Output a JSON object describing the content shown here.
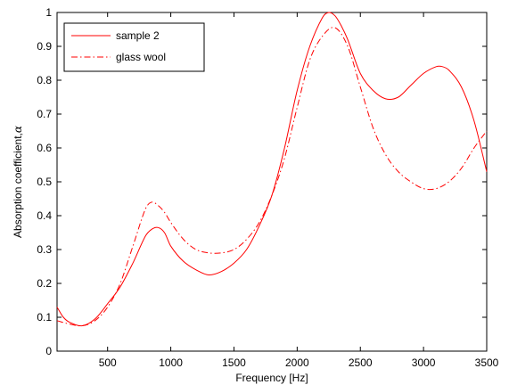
{
  "chart_data": {
    "type": "line",
    "xlabel": "Frequency [Hz]",
    "ylabel": "Absorption coefficient,",
    "ylabel_symbol": "α",
    "xlim": [
      100,
      3500
    ],
    "ylim": [
      0,
      1
    ],
    "xticks": [
      500,
      1000,
      1500,
      2000,
      2500,
      3000,
      3500
    ],
    "yticks": [
      0,
      0.1,
      0.2,
      0.3,
      0.4,
      0.5,
      0.6,
      0.7,
      0.8,
      0.9,
      1
    ],
    "grid": false,
    "legend_position": "top-left",
    "series": [
      {
        "name": "sample 2",
        "color": "#ff0000",
        "style": "solid",
        "x": [
          100,
          150,
          200,
          300,
          400,
          500,
          600,
          700,
          800,
          850,
          900,
          950,
          1000,
          1100,
          1200,
          1300,
          1400,
          1500,
          1600,
          1700,
          1800,
          1900,
          2000,
          2100,
          2200,
          2250,
          2300,
          2350,
          2400,
          2500,
          2600,
          2700,
          2800,
          2900,
          3000,
          3100,
          3150,
          3200,
          3300,
          3400,
          3500
        ],
        "y": [
          0.13,
          0.1,
          0.085,
          0.075,
          0.095,
          0.14,
          0.19,
          0.26,
          0.34,
          0.36,
          0.365,
          0.35,
          0.31,
          0.265,
          0.24,
          0.225,
          0.235,
          0.26,
          0.3,
          0.37,
          0.46,
          0.6,
          0.77,
          0.9,
          0.985,
          1.0,
          0.99,
          0.96,
          0.92,
          0.82,
          0.77,
          0.745,
          0.75,
          0.785,
          0.82,
          0.84,
          0.84,
          0.83,
          0.78,
          0.68,
          0.53
        ]
      },
      {
        "name": "glass wool",
        "color": "#ff0000",
        "style": "dashdot",
        "x": [
          100,
          200,
          300,
          400,
          500,
          600,
          700,
          800,
          850,
          900,
          950,
          1000,
          1100,
          1200,
          1300,
          1400,
          1500,
          1600,
          1700,
          1800,
          1900,
          2000,
          2100,
          2200,
          2300,
          2400,
          2500,
          2600,
          2700,
          2800,
          2900,
          3000,
          3100,
          3200,
          3300,
          3400,
          3500
        ],
        "y": [
          0.09,
          0.08,
          0.075,
          0.09,
          0.13,
          0.2,
          0.31,
          0.42,
          0.44,
          0.43,
          0.41,
          0.38,
          0.33,
          0.3,
          0.29,
          0.29,
          0.3,
          0.33,
          0.38,
          0.46,
          0.57,
          0.72,
          0.86,
          0.93,
          0.955,
          0.9,
          0.78,
          0.66,
          0.58,
          0.53,
          0.5,
          0.48,
          0.48,
          0.5,
          0.54,
          0.6,
          0.65
        ]
      }
    ]
  }
}
